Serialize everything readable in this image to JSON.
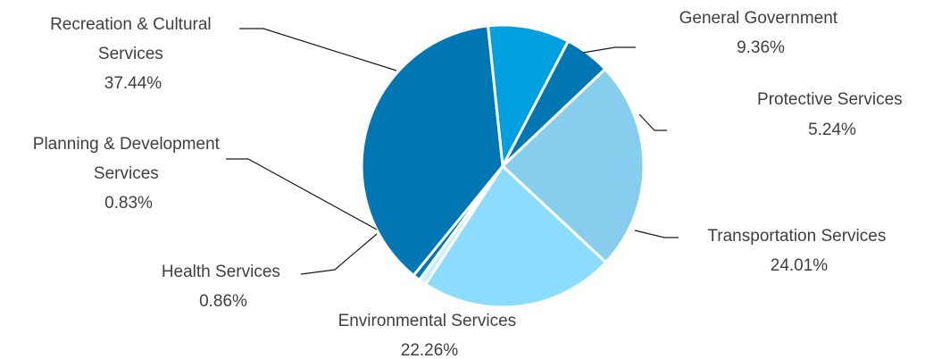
{
  "chart_data": {
    "type": "pie",
    "title": "",
    "series": [
      {
        "values": [
          9.36,
          5.24,
          24.01,
          22.26,
          0.86,
          0.83,
          37.44
        ]
      }
    ],
    "slices": [
      {
        "label": "General Government",
        "value": 9.36,
        "value_text": "9.36%",
        "color": "#009fdf"
      },
      {
        "label": "Protective Services",
        "value": 5.24,
        "value_text": "5.24%",
        "color": "#0077b3"
      },
      {
        "label": "Transportation Services",
        "value": 24.01,
        "value_text": "24.01%",
        "color": "#87cdee"
      },
      {
        "label": "Environmental Services",
        "value": 22.26,
        "value_text": "22.26%",
        "color": "#8bdcff"
      },
      {
        "label": "Health Services",
        "value": 0.86,
        "value_text": "0.86%",
        "color": "#c9eeff"
      },
      {
        "label": "Planning & Development Services",
        "value": 0.83,
        "value_text": "0.83%",
        "color": "#0077b3"
      },
      {
        "label": "Recreation & Cultural Services",
        "value": 37.44,
        "value_text": "37.44%",
        "color": "#0077b3"
      }
    ],
    "start_angle_deg": 0,
    "direction": "clockwise",
    "legend": "none",
    "data_labels": "outside-with-leader-lines"
  }
}
